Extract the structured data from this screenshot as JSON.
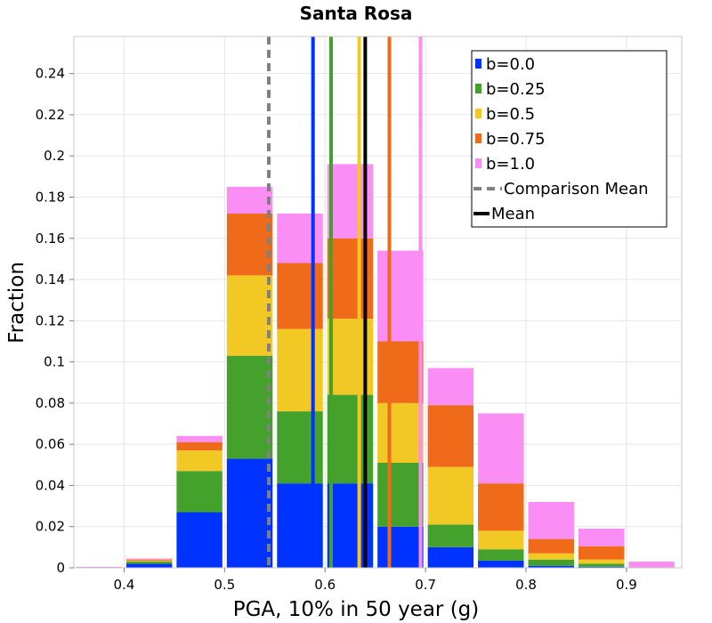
{
  "chart_data": {
    "type": "bar",
    "stacked": true,
    "title": "Santa Rosa",
    "xlabel": "PGA, 10% in 50 year (g)",
    "ylabel": "Fraction",
    "xlim": [
      0.35,
      0.955
    ],
    "ylim": [
      0,
      0.258
    ],
    "bin_width": 0.05,
    "x_ticks": [
      {
        "value": 0.4,
        "label": "0.4"
      },
      {
        "value": 0.5,
        "label": "0.5"
      },
      {
        "value": 0.6,
        "label": "0.6"
      },
      {
        "value": 0.7,
        "label": "0.7"
      },
      {
        "value": 0.8,
        "label": "0.8"
      },
      {
        "value": 0.9,
        "label": "0.9"
      }
    ],
    "y_ticks": [
      {
        "value": 0,
        "label": "0"
      },
      {
        "value": 0.02,
        "label": "0.02"
      },
      {
        "value": 0.04,
        "label": "0.04"
      },
      {
        "value": 0.06,
        "label": "0.06"
      },
      {
        "value": 0.08,
        "label": "0.08"
      },
      {
        "value": 0.1,
        "label": "0.1"
      },
      {
        "value": 0.12,
        "label": "0.12"
      },
      {
        "value": 0.14,
        "label": "0.14"
      },
      {
        "value": 0.16,
        "label": "0.16"
      },
      {
        "value": 0.18,
        "label": "0.18"
      },
      {
        "value": 0.2,
        "label": "0.2"
      },
      {
        "value": 0.22,
        "label": "0.22"
      },
      {
        "value": 0.24,
        "label": "0.24"
      }
    ],
    "bin_centers": [
      0.375,
      0.425,
      0.475,
      0.525,
      0.575,
      0.625,
      0.675,
      0.725,
      0.775,
      0.825,
      0.875,
      0.925
    ],
    "series": [
      {
        "name": "b=0.0",
        "color": "#0033ff",
        "values": [
          0.0,
          0.002,
          0.027,
          0.053,
          0.041,
          0.041,
          0.02,
          0.01,
          0.0035,
          0.001,
          0.0005,
          0.0
        ]
      },
      {
        "name": "b=0.25",
        "color": "#44a12b",
        "values": [
          0.0,
          0.001,
          0.02,
          0.05,
          0.035,
          0.043,
          0.031,
          0.011,
          0.0055,
          0.003,
          0.0015,
          0.0
        ]
      },
      {
        "name": "b=0.5",
        "color": "#f2c824",
        "values": [
          0.0,
          0.0005,
          0.01,
          0.039,
          0.04,
          0.037,
          0.029,
          0.028,
          0.009,
          0.003,
          0.002,
          0.0
        ]
      },
      {
        "name": "b=0.75",
        "color": "#f06b19",
        "values": [
          0.0,
          0.0005,
          0.004,
          0.03,
          0.032,
          0.039,
          0.03,
          0.03,
          0.023,
          0.007,
          0.0065,
          0.0
        ]
      },
      {
        "name": "b=1.0",
        "color": "#fa8ef5",
        "values": [
          0.0005,
          0.0005,
          0.003,
          0.013,
          0.024,
          0.036,
          0.044,
          0.018,
          0.034,
          0.018,
          0.0085,
          0.003
        ]
      }
    ],
    "vertical_lines": [
      {
        "name": "Comparison Mean",
        "x": 0.544,
        "color": "#808080",
        "style": "dashed"
      },
      {
        "name": "Mean b=0.0",
        "x": 0.588,
        "color": "#0033ff",
        "style": "solid"
      },
      {
        "name": "Mean b=0.25",
        "x": 0.606,
        "color": "#44a12b",
        "style": "solid"
      },
      {
        "name": "Mean b=0.5",
        "x": 0.634,
        "color": "#f2c824",
        "style": "solid"
      },
      {
        "name": "Mean",
        "x": 0.64,
        "color": "#000000",
        "style": "solid"
      },
      {
        "name": "Mean b=0.75",
        "x": 0.664,
        "color": "#f06b19",
        "style": "solid"
      },
      {
        "name": "Mean b=1.0",
        "x": 0.695,
        "color": "#fa8ef5",
        "style": "solid"
      }
    ],
    "legend": {
      "position": "top-right",
      "entries": [
        {
          "label": "b=0.0",
          "color": "#0033ff",
          "kind": "box"
        },
        {
          "label": "b=0.25",
          "color": "#44a12b",
          "kind": "box"
        },
        {
          "label": "b=0.5",
          "color": "#f2c824",
          "kind": "box"
        },
        {
          "label": "b=0.75",
          "color": "#f06b19",
          "kind": "box"
        },
        {
          "label": "b=1.0",
          "color": "#fa8ef5",
          "kind": "box"
        },
        {
          "label": "Comparison Mean",
          "color": "#808080",
          "kind": "dashed"
        },
        {
          "label": "Mean",
          "color": "#000000",
          "kind": "solid"
        }
      ]
    },
    "grid": true
  }
}
